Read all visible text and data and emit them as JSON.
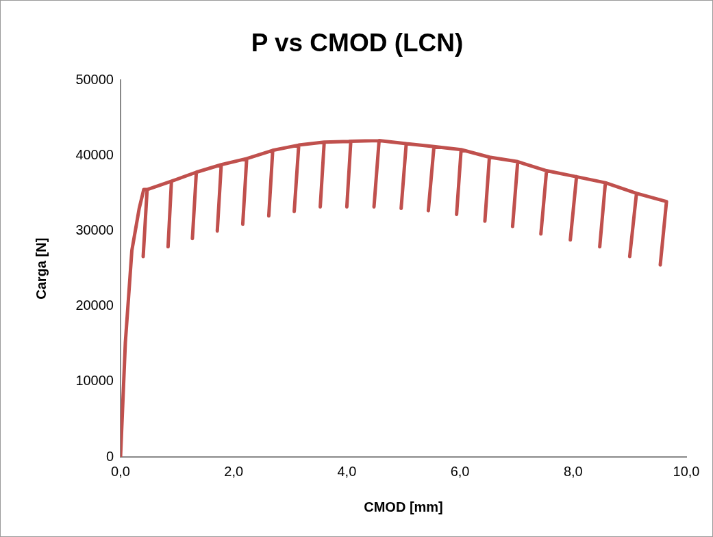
{
  "chart_data": {
    "type": "line",
    "title": "P vs CMOD (LCN)",
    "xlabel": "CMOD [mm]",
    "ylabel": "Carga [N]",
    "xlim": [
      0,
      10
    ],
    "xticks": [
      {
        "value": 0,
        "label": "0,0"
      },
      {
        "value": 2,
        "label": "2,0"
      },
      {
        "value": 4,
        "label": "4,0"
      },
      {
        "value": 6,
        "label": "6,0"
      },
      {
        "value": 8,
        "label": "8,0"
      },
      {
        "value": 10,
        "label": "10,0"
      }
    ],
    "ylim": [
      0,
      50000
    ],
    "yticks": [
      0,
      10000,
      20000,
      30000,
      40000,
      50000
    ],
    "grid": false,
    "legend": false,
    "marker": "none",
    "line_style": "solid",
    "series": [
      {
        "color": "#c0504d",
        "x": [
          0,
          0.085,
          0.2,
          0.33,
          0.41,
          0.47,
          0.4,
          0.47,
          0.9,
          0.84,
          0.9,
          1.34,
          1.27,
          1.34,
          1.78,
          1.71,
          1.78,
          2.23,
          2.16,
          2.23,
          2.69,
          2.62,
          2.69,
          3.15,
          3.07,
          3.15,
          3.6,
          3.53,
          3.6,
          4.07,
          4.0,
          4.07,
          4.57,
          4.48,
          4.57,
          5.05,
          4.96,
          5.05,
          5.54,
          5.44,
          5.54,
          6.02,
          5.94,
          6.02,
          6.52,
          6.44,
          6.52,
          7.02,
          6.93,
          7.02,
          7.53,
          7.43,
          7.53,
          8.06,
          7.95,
          8.06,
          8.57,
          8.47,
          8.57,
          9.12,
          9.0,
          9.12,
          9.65,
          9.54
        ],
        "values": [
          0,
          15200,
          27400,
          33000,
          35500,
          35500,
          26600,
          35500,
          36600,
          27900,
          36600,
          37800,
          29000,
          37800,
          38800,
          30000,
          38800,
          39600,
          30900,
          39600,
          40700,
          32000,
          40700,
          41400,
          32600,
          41400,
          41800,
          33200,
          41800,
          41900,
          33200,
          41900,
          42000,
          33200,
          42000,
          41600,
          33000,
          41600,
          41200,
          32700,
          41200,
          40800,
          32200,
          40800,
          39800,
          31300,
          39800,
          39200,
          30600,
          39200,
          38000,
          29600,
          38000,
          37200,
          28800,
          37200,
          36400,
          27900,
          36400,
          35000,
          26600,
          35000,
          33900,
          25500
        ]
      }
    ]
  }
}
